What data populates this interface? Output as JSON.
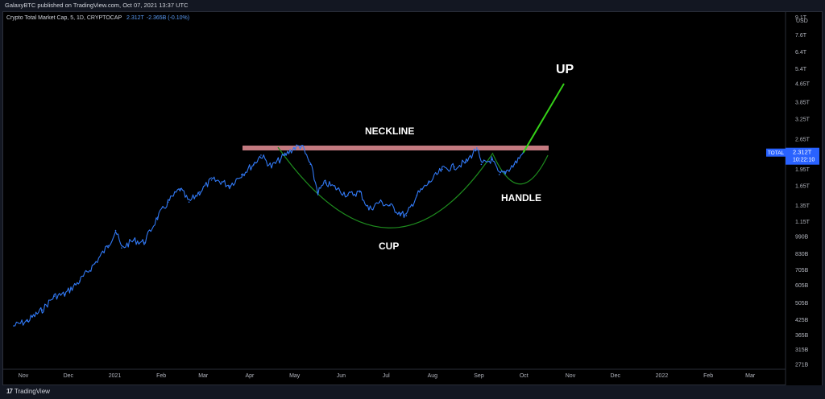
{
  "header": {
    "published_by": "GalaxyBTC published on TradingView.com, Oct 07, 2021 13:37 UTC"
  },
  "legend": {
    "symbol": "Crypto Total Market Cap, 5, 1D, CRYPTOCAP",
    "last": "2.312T",
    "change": "-2.365B (-0.10%)"
  },
  "price_axis": {
    "unit": "USD",
    "ticks": [
      "9.1T",
      "7.6T",
      "6.4T",
      "5.4T",
      "4.65T",
      "3.85T",
      "3.25T",
      "2.65T",
      "2.312T",
      "1.95T",
      "1.65T",
      "1.35T",
      "1.15T",
      "990B",
      "830B",
      "705B",
      "605B",
      "505B",
      "425B",
      "365B",
      "315B",
      "271B"
    ]
  },
  "price_label": {
    "tag": "TOTAL",
    "value": "2.312T",
    "countdown": "10:22:10",
    "color": "#2962ff"
  },
  "time_axis": {
    "ticks": [
      "Nov",
      "Dec",
      "2021",
      "Feb",
      "Mar",
      "Apr",
      "May",
      "Jun",
      "Jul",
      "Aug",
      "Sep",
      "Oct",
      "Nov",
      "Dec",
      "2022",
      "Feb",
      "Mar"
    ]
  },
  "annotations": {
    "neckline": "NECKLINE",
    "cup": "CUP",
    "handle": "HANDLE",
    "up": "UP"
  },
  "colors": {
    "background": "#000000",
    "price_line": "#3179f5",
    "neckline": "#c47a80",
    "cup_arc": "#1e8c1e",
    "up_arrow": "#34d017"
  },
  "footer": {
    "brand": "TradingView"
  },
  "chart_data": {
    "type": "line",
    "title": "Crypto Total Market Cap, 5, 1D, CRYPTOCAP",
    "scale": "log",
    "ylim": [
      0.26,
      9.5
    ],
    "y_unit": "trillion USD",
    "xlim": [
      "2020-10-25",
      "2022-03-31"
    ],
    "series": [
      {
        "x": [
          "2020-11-01",
          "2020-11-10",
          "2020-11-20",
          "2020-11-28",
          "2020-12-05",
          "2020-12-15",
          "2020-12-25",
          "2021-01-03",
          "2021-01-08",
          "2021-01-12",
          "2021-01-20",
          "2021-01-27",
          "2021-02-05",
          "2021-02-12",
          "2021-02-20",
          "2021-02-26",
          "2021-03-05",
          "2021-03-13",
          "2021-03-20",
          "2021-03-25",
          "2021-04-02",
          "2021-04-10",
          "2021-04-15",
          "2021-04-22",
          "2021-05-01",
          "2021-05-07",
          "2021-05-12",
          "2021-05-18",
          "2021-05-23",
          "2021-05-28",
          "2021-06-05",
          "2021-06-12",
          "2021-06-20",
          "2021-06-26",
          "2021-07-03",
          "2021-07-10",
          "2021-07-17",
          "2021-07-21",
          "2021-07-28",
          "2021-08-05",
          "2021-08-14",
          "2021-08-22",
          "2021-08-30",
          "2021-09-06",
          "2021-09-09",
          "2021-09-16",
          "2021-09-21",
          "2021-09-25",
          "2021-10-01",
          "2021-10-07"
        ],
        "values": [
          0.4,
          0.42,
          0.47,
          0.54,
          0.55,
          0.63,
          0.75,
          0.9,
          1.05,
          0.88,
          0.95,
          0.93,
          1.2,
          1.4,
          1.6,
          1.4,
          1.55,
          1.75,
          1.72,
          1.65,
          1.85,
          2.05,
          2.25,
          2.0,
          2.25,
          2.42,
          2.48,
          2.05,
          1.55,
          1.7,
          1.6,
          1.5,
          1.55,
          1.3,
          1.4,
          1.35,
          1.25,
          1.22,
          1.5,
          1.7,
          1.95,
          2.0,
          2.1,
          2.42,
          2.05,
          2.15,
          1.85,
          1.9,
          2.05,
          2.31
        ]
      }
    ],
    "neckline": 2.42,
    "annotations": [
      "NECKLINE",
      "CUP",
      "HANDLE",
      "UP"
    ],
    "grid": false,
    "last_value": "2.312T"
  }
}
